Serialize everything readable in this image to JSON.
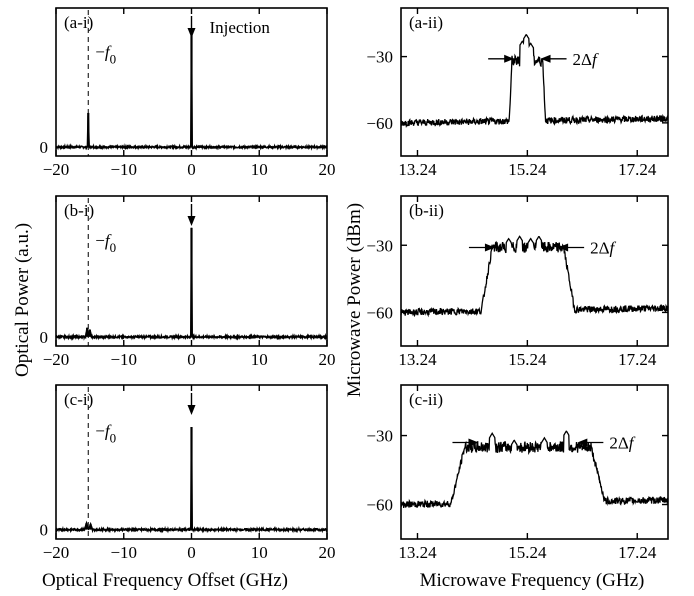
{
  "chart_data": [
    {
      "id": "a-i",
      "panel_label": "(a-i)",
      "type": "line",
      "x_ticks": [
        -20,
        -10,
        0,
        10,
        20
      ],
      "y_ticks": [
        0
      ],
      "xlim": [
        -20,
        20
      ],
      "ylim": [
        -0.1,
        1.55
      ],
      "dashed_line_x": -15.24,
      "dashed_label_prefix": "−",
      "dashed_label_var": "f",
      "dashed_label_sub": "0",
      "arrow_x": 0,
      "arrow_label": "Injection",
      "peaks": [
        {
          "x": -15.24,
          "y": 0.38,
          "w": 0.12
        },
        {
          "x": 0,
          "y": 1.25,
          "w": 0.1
        }
      ]
    },
    {
      "id": "b-i",
      "panel_label": "(b-i)",
      "type": "line",
      "x_ticks": [
        -20,
        -10,
        0,
        10,
        20
      ],
      "y_ticks": [
        0
      ],
      "xlim": [
        -20,
        20
      ],
      "ylim": [
        -0.1,
        1.55
      ],
      "dashed_line_x": -15.24,
      "dashed_label_prefix": "−",
      "dashed_label_var": "f",
      "dashed_label_sub": "0",
      "arrow_x": 0,
      "arrow_label": "",
      "peaks": [
        {
          "x": -15.4,
          "y": 0.1,
          "w": 0.25
        },
        {
          "x": -15.0,
          "y": 0.08,
          "w": 0.25
        },
        {
          "x": 0,
          "y": 1.2,
          "w": 0.1
        }
      ]
    },
    {
      "id": "c-i",
      "panel_label": "(c-i)",
      "type": "line",
      "x_ticks": [
        -20,
        -10,
        0,
        10,
        20
      ],
      "y_ticks": [
        0
      ],
      "xlim": [
        -20,
        20
      ],
      "ylim": [
        -0.1,
        1.55
      ],
      "dashed_line_x": -15.24,
      "dashed_label_prefix": "−",
      "dashed_label_var": "f",
      "dashed_label_sub": "0",
      "arrow_x": 0,
      "arrow_label": "",
      "peaks": [
        {
          "x": -15.5,
          "y": 0.07,
          "w": 0.3
        },
        {
          "x": -14.9,
          "y": 0.06,
          "w": 0.3
        },
        {
          "x": 0,
          "y": 1.1,
          "w": 0.1
        }
      ]
    },
    {
      "id": "a-ii",
      "panel_label": "(a-ii)",
      "type": "line",
      "x_ticks": [
        13.24,
        15.24,
        17.24
      ],
      "y_ticks": [
        -30,
        -60
      ],
      "xlim": [
        12.94,
        17.8
      ],
      "ylim": [
        -75,
        -8
      ],
      "baseline": -60,
      "plateau": -32,
      "x_start": 14.96,
      "x_end": 15.52,
      "edge": 0.05,
      "spikes": [
        {
          "x": 15.15,
          "y": -23
        },
        {
          "x": 15.22,
          "y": -20
        },
        {
          "x": 15.3,
          "y": -24
        }
      ],
      "annotation_label": "2Δf",
      "arrow_left_x": 15.0,
      "arrow_right_x": 15.48,
      "annotation_y": -31
    },
    {
      "id": "b-ii",
      "panel_label": "(b-ii)",
      "type": "line",
      "x_ticks": [
        13.24,
        15.24,
        17.24
      ],
      "y_ticks": [
        -30,
        -60
      ],
      "xlim": [
        12.94,
        17.8
      ],
      "ylim": [
        -75,
        -8
      ],
      "baseline": -60,
      "plateau": -31,
      "x_start": 14.6,
      "x_end": 15.9,
      "edge": 0.2,
      "spikes": [
        {
          "x": 14.9,
          "y": -27
        },
        {
          "x": 15.1,
          "y": -26
        },
        {
          "x": 15.3,
          "y": -27
        },
        {
          "x": 15.45,
          "y": -26
        }
      ],
      "annotation_label": "2Δf",
      "arrow_left_x": 14.65,
      "arrow_right_x": 15.8,
      "annotation_y": -31
    },
    {
      "id": "c-ii",
      "panel_label": "(c-ii)",
      "type": "line",
      "x_ticks": [
        13.24,
        15.24,
        17.24
      ],
      "y_ticks": [
        -30,
        -60
      ],
      "xlim": [
        12.94,
        17.8
      ],
      "ylim": [
        -75,
        -8
      ],
      "baseline": -60,
      "plateau": -35,
      "x_start": 14.1,
      "x_end": 16.4,
      "edge": 0.25,
      "spikes": [
        {
          "x": 14.6,
          "y": -29
        },
        {
          "x": 15.0,
          "y": -32
        },
        {
          "x": 15.55,
          "y": -31
        },
        {
          "x": 15.95,
          "y": -28
        }
      ],
      "annotation_label": "2Δf",
      "arrow_left_x": 14.35,
      "arrow_right_x": 16.15,
      "annotation_y": -33
    }
  ],
  "left_ylabel": "Optical Power (a.u.)",
  "left_xlabel": "Optical Frequency Offset (GHz)",
  "right_ylabel": "Microwave Power (dBm)",
  "right_xlabel": "Microwave Frequency (GHz)"
}
